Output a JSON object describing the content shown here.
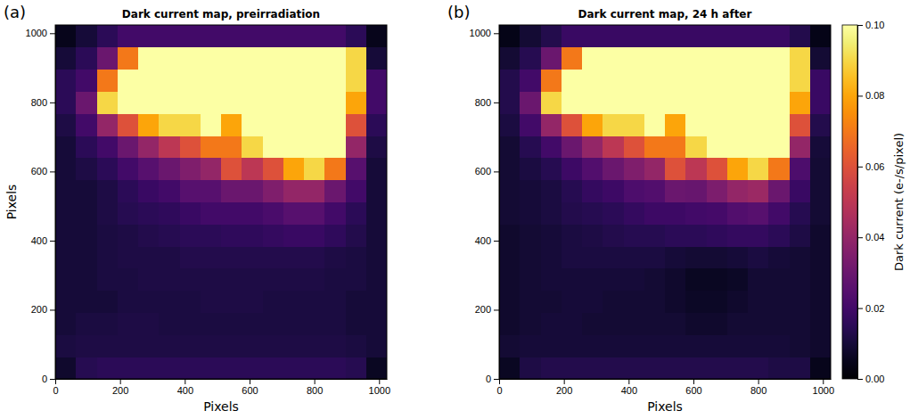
{
  "chart_data": [
    {
      "type": "heatmap",
      "label": "(a)",
      "title": "Dark current map, preirradiation",
      "xlabel": "Pixels",
      "ylabel": "Pixels",
      "xlim": [
        0,
        1024
      ],
      "ylim": [
        0,
        1024
      ],
      "xticks": [
        0,
        200,
        400,
        600,
        800,
        1000
      ],
      "yticks": [
        0,
        200,
        400,
        600,
        800,
        1000
      ],
      "x": [
        32,
        96,
        160,
        224,
        288,
        352,
        416,
        480,
        544,
        608,
        672,
        736,
        800,
        864,
        928,
        992
      ],
      "y": [
        32,
        96,
        160,
        224,
        288,
        352,
        416,
        480,
        544,
        608,
        672,
        736,
        800,
        864,
        928,
        992
      ],
      "values": [
        [
          0.008,
          0.014,
          0.015,
          0.015,
          0.015,
          0.015,
          0.015,
          0.015,
          0.015,
          0.015,
          0.015,
          0.015,
          0.015,
          0.015,
          0.014,
          0.006
        ],
        [
          0.011,
          0.012,
          0.012,
          0.012,
          0.012,
          0.012,
          0.012,
          0.012,
          0.012,
          0.012,
          0.012,
          0.012,
          0.012,
          0.012,
          0.011,
          0.01
        ],
        [
          0.01,
          0.011,
          0.011,
          0.012,
          0.012,
          0.011,
          0.011,
          0.011,
          0.011,
          0.011,
          0.011,
          0.011,
          0.011,
          0.011,
          0.01,
          0.01
        ],
        [
          0.01,
          0.01,
          0.01,
          0.011,
          0.011,
          0.011,
          0.011,
          0.012,
          0.012,
          0.012,
          0.011,
          0.011,
          0.011,
          0.011,
          0.01,
          0.01
        ],
        [
          0.01,
          0.01,
          0.011,
          0.011,
          0.012,
          0.012,
          0.012,
          0.012,
          0.012,
          0.012,
          0.012,
          0.012,
          0.012,
          0.011,
          0.011,
          0.01
        ],
        [
          0.01,
          0.01,
          0.011,
          0.012,
          0.012,
          0.012,
          0.013,
          0.013,
          0.013,
          0.013,
          0.013,
          0.013,
          0.013,
          0.012,
          0.011,
          0.01
        ],
        [
          0.01,
          0.01,
          0.011,
          0.012,
          0.013,
          0.014,
          0.015,
          0.015,
          0.016,
          0.016,
          0.017,
          0.018,
          0.018,
          0.016,
          0.013,
          0.01
        ],
        [
          0.01,
          0.01,
          0.012,
          0.014,
          0.015,
          0.016,
          0.018,
          0.02,
          0.02,
          0.02,
          0.022,
          0.025,
          0.025,
          0.02,
          0.015,
          0.01
        ],
        [
          0.01,
          0.01,
          0.012,
          0.015,
          0.018,
          0.02,
          0.025,
          0.025,
          0.03,
          0.03,
          0.035,
          0.04,
          0.04,
          0.03,
          0.02,
          0.01
        ],
        [
          0.01,
          0.012,
          0.015,
          0.02,
          0.025,
          0.03,
          0.035,
          0.04,
          0.06,
          0.05,
          0.06,
          0.08,
          0.09,
          0.07,
          0.025,
          0.01
        ],
        [
          0.01,
          0.015,
          0.02,
          0.03,
          0.04,
          0.05,
          0.06,
          0.07,
          0.07,
          0.09,
          0.1,
          0.1,
          0.1,
          0.1,
          0.04,
          0.012
        ],
        [
          0.012,
          0.02,
          0.04,
          0.06,
          0.08,
          0.09,
          0.09,
          0.1,
          0.08,
          0.1,
          0.1,
          0.1,
          0.1,
          0.1,
          0.06,
          0.015
        ],
        [
          0.015,
          0.03,
          0.09,
          0.1,
          0.1,
          0.1,
          0.1,
          0.1,
          0.1,
          0.1,
          0.1,
          0.1,
          0.1,
          0.1,
          0.08,
          0.02
        ],
        [
          0.015,
          0.02,
          0.07,
          0.1,
          0.1,
          0.1,
          0.1,
          0.1,
          0.1,
          0.1,
          0.1,
          0.1,
          0.1,
          0.1,
          0.09,
          0.02
        ],
        [
          0.01,
          0.015,
          0.03,
          0.07,
          0.1,
          0.1,
          0.1,
          0.1,
          0.1,
          0.1,
          0.1,
          0.1,
          0.1,
          0.1,
          0.09,
          0.01
        ],
        [
          0.005,
          0.01,
          0.015,
          0.02,
          0.02,
          0.02,
          0.02,
          0.02,
          0.02,
          0.02,
          0.02,
          0.02,
          0.02,
          0.02,
          0.015,
          0.005
        ]
      ]
    },
    {
      "type": "heatmap",
      "label": "(b)",
      "title": "Dark current map, 24 h after",
      "xlabel": "Pixels",
      "xlim": [
        0,
        1024
      ],
      "ylim": [
        0,
        1024
      ],
      "xticks": [
        0,
        200,
        400,
        600,
        800,
        1000
      ],
      "yticks": [
        0,
        200,
        400,
        600,
        800,
        1000
      ],
      "x": [
        32,
        96,
        160,
        224,
        288,
        352,
        416,
        480,
        544,
        608,
        672,
        736,
        800,
        864,
        928,
        992
      ],
      "y": [
        32,
        96,
        160,
        224,
        288,
        352,
        416,
        480,
        544,
        608,
        672,
        736,
        800,
        864,
        928,
        992
      ],
      "values": [
        [
          0.006,
          0.012,
          0.013,
          0.013,
          0.013,
          0.013,
          0.013,
          0.013,
          0.013,
          0.013,
          0.013,
          0.013,
          0.013,
          0.012,
          0.012,
          0.005
        ],
        [
          0.009,
          0.01,
          0.01,
          0.01,
          0.01,
          0.01,
          0.01,
          0.01,
          0.01,
          0.01,
          0.01,
          0.01,
          0.01,
          0.01,
          0.009,
          0.008
        ],
        [
          0.008,
          0.009,
          0.01,
          0.01,
          0.009,
          0.009,
          0.009,
          0.009,
          0.009,
          0.008,
          0.008,
          0.009,
          0.009,
          0.009,
          0.009,
          0.008
        ],
        [
          0.008,
          0.009,
          0.009,
          0.01,
          0.01,
          0.009,
          0.009,
          0.009,
          0.008,
          0.007,
          0.007,
          0.008,
          0.009,
          0.009,
          0.009,
          0.008
        ],
        [
          0.008,
          0.009,
          0.01,
          0.01,
          0.01,
          0.01,
          0.01,
          0.009,
          0.008,
          0.006,
          0.006,
          0.007,
          0.009,
          0.009,
          0.009,
          0.008
        ],
        [
          0.008,
          0.009,
          0.01,
          0.011,
          0.011,
          0.011,
          0.011,
          0.011,
          0.01,
          0.009,
          0.009,
          0.01,
          0.011,
          0.01,
          0.009,
          0.008
        ],
        [
          0.008,
          0.009,
          0.01,
          0.011,
          0.012,
          0.013,
          0.014,
          0.014,
          0.015,
          0.015,
          0.016,
          0.017,
          0.017,
          0.015,
          0.012,
          0.008
        ],
        [
          0.009,
          0.01,
          0.011,
          0.013,
          0.014,
          0.015,
          0.017,
          0.019,
          0.019,
          0.02,
          0.021,
          0.024,
          0.025,
          0.02,
          0.014,
          0.009
        ],
        [
          0.009,
          0.01,
          0.011,
          0.014,
          0.017,
          0.019,
          0.023,
          0.024,
          0.03,
          0.029,
          0.034,
          0.04,
          0.042,
          0.03,
          0.018,
          0.009
        ],
        [
          0.009,
          0.011,
          0.014,
          0.019,
          0.024,
          0.03,
          0.035,
          0.04,
          0.06,
          0.05,
          0.06,
          0.08,
          0.09,
          0.07,
          0.023,
          0.009
        ],
        [
          0.009,
          0.014,
          0.02,
          0.03,
          0.04,
          0.05,
          0.06,
          0.07,
          0.07,
          0.09,
          0.1,
          0.1,
          0.1,
          0.1,
          0.04,
          0.01
        ],
        [
          0.011,
          0.02,
          0.04,
          0.06,
          0.08,
          0.09,
          0.09,
          0.1,
          0.08,
          0.1,
          0.1,
          0.1,
          0.1,
          0.1,
          0.06,
          0.013
        ],
        [
          0.013,
          0.03,
          0.09,
          0.1,
          0.1,
          0.1,
          0.1,
          0.1,
          0.1,
          0.1,
          0.1,
          0.1,
          0.1,
          0.1,
          0.08,
          0.018
        ],
        [
          0.013,
          0.02,
          0.07,
          0.1,
          0.1,
          0.1,
          0.1,
          0.1,
          0.1,
          0.1,
          0.1,
          0.1,
          0.1,
          0.1,
          0.09,
          0.018
        ],
        [
          0.009,
          0.014,
          0.03,
          0.07,
          0.1,
          0.1,
          0.1,
          0.1,
          0.1,
          0.1,
          0.1,
          0.1,
          0.1,
          0.1,
          0.09,
          0.009
        ],
        [
          0.004,
          0.009,
          0.013,
          0.018,
          0.018,
          0.018,
          0.018,
          0.018,
          0.018,
          0.018,
          0.018,
          0.018,
          0.018,
          0.018,
          0.013,
          0.004
        ]
      ],
      "colorbar": {
        "label": "Dark current (e-/s/pixel)",
        "range": [
          0,
          0.1
        ],
        "ticks": [
          {
            "value": 0,
            "label": "0.00"
          },
          {
            "value": 0.02,
            "label": "0.02"
          },
          {
            "value": 0.04,
            "label": "0.04"
          },
          {
            "value": 0.06,
            "label": "0.06"
          },
          {
            "value": 0.08,
            "label": "0.08"
          },
          {
            "value": 0.1,
            "label": "0.10"
          }
        ]
      }
    }
  ]
}
